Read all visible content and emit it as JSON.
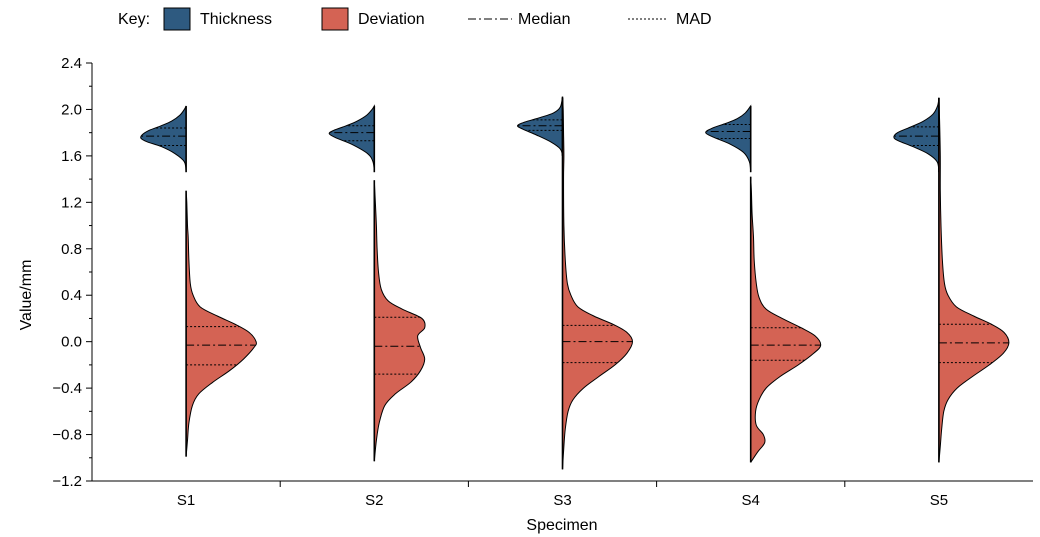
{
  "legend": {
    "key_label": "Key:",
    "items": [
      {
        "label": "Thickness",
        "kind": "patch",
        "color": "#2e5a80"
      },
      {
        "label": "Deviation",
        "kind": "patch",
        "color": "#d46354"
      },
      {
        "label": "Median",
        "kind": "line",
        "style": "dashdot"
      },
      {
        "label": "MAD",
        "kind": "line",
        "style": "dotted"
      }
    ]
  },
  "chart_data": {
    "type": "split-violin",
    "xlabel": "Specimen",
    "ylabel": "Value/mm",
    "ylim": [
      -1.2,
      2.4
    ],
    "yticks": [
      -1.2,
      -0.8,
      -0.4,
      0.0,
      0.4,
      0.8,
      1.2,
      1.6,
      2.0,
      2.4
    ],
    "ytick_labels": [
      "−1.2",
      "−0.8",
      "−0.4",
      "0.0",
      "0.4",
      "0.8",
      "1.2",
      "1.6",
      "2.0",
      "2.4"
    ],
    "categories": [
      "S1",
      "S2",
      "S3",
      "S4",
      "S5"
    ],
    "colors": {
      "thickness": "#2e5a80",
      "deviation": "#d46354"
    },
    "thickness": [
      {
        "specimen": "S1",
        "min": 1.46,
        "max": 2.03,
        "median": 1.77,
        "mad_low": 1.69,
        "mad_high": 1.84,
        "profile": [
          [
            1.46,
            0.0
          ],
          [
            1.55,
            0.04
          ],
          [
            1.62,
            0.25
          ],
          [
            1.68,
            0.55
          ],
          [
            1.72,
            0.86
          ],
          [
            1.75,
            1.0
          ],
          [
            1.78,
            0.98
          ],
          [
            1.82,
            0.82
          ],
          [
            1.86,
            0.55
          ],
          [
            1.9,
            0.32
          ],
          [
            1.95,
            0.14
          ],
          [
            2.0,
            0.04
          ],
          [
            2.03,
            0.0
          ]
        ]
      },
      {
        "specimen": "S2",
        "min": 1.46,
        "max": 2.03,
        "median": 1.8,
        "mad_low": 1.73,
        "mad_high": 1.86,
        "profile": [
          [
            1.46,
            0.0
          ],
          [
            1.55,
            0.03
          ],
          [
            1.62,
            0.15
          ],
          [
            1.7,
            0.5
          ],
          [
            1.75,
            0.82
          ],
          [
            1.79,
            1.0
          ],
          [
            1.82,
            0.9
          ],
          [
            1.86,
            0.62
          ],
          [
            1.9,
            0.38
          ],
          [
            1.95,
            0.17
          ],
          [
            2.0,
            0.05
          ],
          [
            2.03,
            0.0
          ]
        ]
      },
      {
        "specimen": "S3",
        "min": 1.6,
        "max": 2.11,
        "median": 1.86,
        "mad_low": 1.82,
        "mad_high": 1.91,
        "profile": [
          [
            1.6,
            0.0
          ],
          [
            1.66,
            0.05
          ],
          [
            1.72,
            0.26
          ],
          [
            1.78,
            0.58
          ],
          [
            1.83,
            0.88
          ],
          [
            1.86,
            1.0
          ],
          [
            1.89,
            0.85
          ],
          [
            1.93,
            0.5
          ],
          [
            1.97,
            0.2
          ],
          [
            2.02,
            0.05
          ],
          [
            2.11,
            0.0
          ]
        ]
      },
      {
        "specimen": "S4",
        "min": 1.46,
        "max": 2.03,
        "median": 1.81,
        "mad_low": 1.75,
        "mad_high": 1.87,
        "profile": [
          [
            1.46,
            0.0
          ],
          [
            1.55,
            0.03
          ],
          [
            1.63,
            0.16
          ],
          [
            1.7,
            0.45
          ],
          [
            1.76,
            0.82
          ],
          [
            1.8,
            1.0
          ],
          [
            1.84,
            0.85
          ],
          [
            1.88,
            0.55
          ],
          [
            1.92,
            0.3
          ],
          [
            1.97,
            0.12
          ],
          [
            2.03,
            0.0
          ]
        ]
      },
      {
        "specimen": "S5",
        "min": 1.46,
        "max": 2.1,
        "median": 1.77,
        "mad_low": 1.69,
        "mad_high": 1.85,
        "profile": [
          [
            1.46,
            0.0
          ],
          [
            1.55,
            0.04
          ],
          [
            1.62,
            0.25
          ],
          [
            1.68,
            0.58
          ],
          [
            1.73,
            0.9
          ],
          [
            1.76,
            1.0
          ],
          [
            1.8,
            0.92
          ],
          [
            1.85,
            0.62
          ],
          [
            1.9,
            0.34
          ],
          [
            1.96,
            0.13
          ],
          [
            2.03,
            0.03
          ],
          [
            2.1,
            0.0
          ]
        ]
      }
    ],
    "deviation": [
      {
        "specimen": "S1",
        "min": -0.99,
        "max": 1.3,
        "median": -0.03,
        "mad_low": -0.2,
        "mad_high": 0.13,
        "profile": [
          [
            -0.99,
            0.0
          ],
          [
            -0.85,
            0.02
          ],
          [
            -0.7,
            0.04
          ],
          [
            -0.55,
            0.09
          ],
          [
            -0.45,
            0.18
          ],
          [
            -0.35,
            0.38
          ],
          [
            -0.25,
            0.62
          ],
          [
            -0.15,
            0.82
          ],
          [
            -0.05,
            0.97
          ],
          [
            0.0,
            1.0
          ],
          [
            0.08,
            0.9
          ],
          [
            0.15,
            0.7
          ],
          [
            0.22,
            0.45
          ],
          [
            0.3,
            0.2
          ],
          [
            0.4,
            0.1
          ],
          [
            0.5,
            0.06
          ],
          [
            0.7,
            0.04
          ],
          [
            0.9,
            0.03
          ],
          [
            1.0,
            0.02
          ],
          [
            1.2,
            0.01
          ],
          [
            1.3,
            0.0
          ]
        ]
      },
      {
        "specimen": "S2",
        "min": -1.03,
        "max": 1.39,
        "median": -0.04,
        "mad_low": -0.28,
        "mad_high": 0.21,
        "profile": [
          [
            -1.03,
            0.0
          ],
          [
            -0.85,
            0.03
          ],
          [
            -0.7,
            0.07
          ],
          [
            -0.55,
            0.15
          ],
          [
            -0.45,
            0.3
          ],
          [
            -0.35,
            0.52
          ],
          [
            -0.25,
            0.66
          ],
          [
            -0.15,
            0.72
          ],
          [
            -0.05,
            0.66
          ],
          [
            0.05,
            0.62
          ],
          [
            0.12,
            0.72
          ],
          [
            0.2,
            0.68
          ],
          [
            0.28,
            0.4
          ],
          [
            0.35,
            0.2
          ],
          [
            0.45,
            0.1
          ],
          [
            0.6,
            0.06
          ],
          [
            0.8,
            0.04
          ],
          [
            1.0,
            0.03
          ],
          [
            1.2,
            0.015
          ],
          [
            1.39,
            0.0
          ]
        ]
      },
      {
        "specimen": "S3",
        "min": -1.1,
        "max": 2.1,
        "median": 0.0,
        "mad_low": -0.18,
        "mad_high": 0.14,
        "profile": [
          [
            -1.1,
            0.0
          ],
          [
            -0.9,
            0.02
          ],
          [
            -0.75,
            0.04
          ],
          [
            -0.6,
            0.08
          ],
          [
            -0.5,
            0.15
          ],
          [
            -0.4,
            0.3
          ],
          [
            -0.3,
            0.52
          ],
          [
            -0.2,
            0.75
          ],
          [
            -0.1,
            0.92
          ],
          [
            0.0,
            1.0
          ],
          [
            0.08,
            0.92
          ],
          [
            0.15,
            0.72
          ],
          [
            0.22,
            0.45
          ],
          [
            0.3,
            0.22
          ],
          [
            0.4,
            0.12
          ],
          [
            0.5,
            0.07
          ],
          [
            0.7,
            0.04
          ],
          [
            1.0,
            0.02
          ],
          [
            1.4,
            0.015
          ],
          [
            1.6,
            0.02
          ],
          [
            1.8,
            0.015
          ],
          [
            2.0,
            0.01
          ],
          [
            2.1,
            0.0
          ]
        ]
      },
      {
        "specimen": "S4",
        "min": -1.04,
        "max": 1.42,
        "median": -0.03,
        "mad_low": -0.16,
        "mad_high": 0.12,
        "profile": [
          [
            -1.04,
            0.0
          ],
          [
            -0.95,
            0.1
          ],
          [
            -0.87,
            0.2
          ],
          [
            -0.8,
            0.18
          ],
          [
            -0.72,
            0.08
          ],
          [
            -0.6,
            0.07
          ],
          [
            -0.5,
            0.12
          ],
          [
            -0.4,
            0.22
          ],
          [
            -0.3,
            0.42
          ],
          [
            -0.2,
            0.68
          ],
          [
            -0.1,
            0.9
          ],
          [
            -0.03,
            1.0
          ],
          [
            0.05,
            0.92
          ],
          [
            0.12,
            0.72
          ],
          [
            0.2,
            0.45
          ],
          [
            0.28,
            0.22
          ],
          [
            0.38,
            0.12
          ],
          [
            0.5,
            0.08
          ],
          [
            0.7,
            0.05
          ],
          [
            0.9,
            0.04
          ],
          [
            1.1,
            0.02
          ],
          [
            1.3,
            0.01
          ],
          [
            1.42,
            0.0
          ]
        ]
      },
      {
        "specimen": "S5",
        "min": -1.04,
        "max": 2.1,
        "median": -0.01,
        "mad_low": -0.18,
        "mad_high": 0.15,
        "profile": [
          [
            -1.04,
            0.0
          ],
          [
            -0.9,
            0.02
          ],
          [
            -0.75,
            0.04
          ],
          [
            -0.6,
            0.07
          ],
          [
            -0.5,
            0.13
          ],
          [
            -0.4,
            0.26
          ],
          [
            -0.3,
            0.48
          ],
          [
            -0.2,
            0.72
          ],
          [
            -0.1,
            0.92
          ],
          [
            -0.01,
            1.0
          ],
          [
            0.08,
            0.93
          ],
          [
            0.15,
            0.75
          ],
          [
            0.22,
            0.5
          ],
          [
            0.3,
            0.25
          ],
          [
            0.4,
            0.13
          ],
          [
            0.5,
            0.08
          ],
          [
            0.7,
            0.05
          ],
          [
            1.0,
            0.03
          ],
          [
            1.3,
            0.02
          ],
          [
            1.6,
            0.02
          ],
          [
            1.9,
            0.01
          ],
          [
            2.1,
            0.0
          ]
        ]
      }
    ]
  }
}
